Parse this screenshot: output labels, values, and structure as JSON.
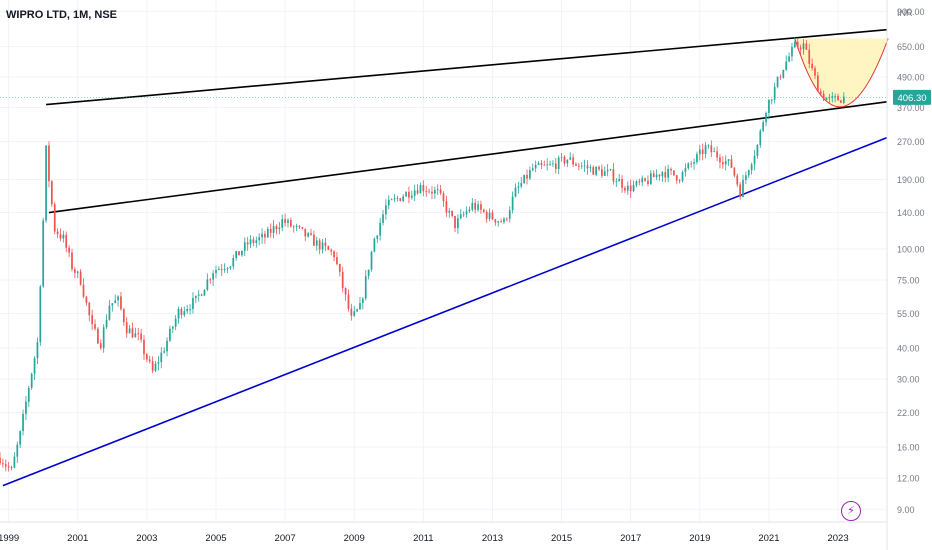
{
  "header": {
    "title": "WIPRO LTD, 1M, NSE"
  },
  "chart_data": {
    "type": "candlestick",
    "symbol": "WIPRO LTD",
    "interval": "1M",
    "exchange": "NSE",
    "currency": "INR",
    "y_scale": "log",
    "ylim": [
      8,
      1000
    ],
    "last_price": "406.30",
    "y_tick_labels": [
      "900.00",
      "650.00",
      "490.00",
      "370.00",
      "270.00",
      "190.00",
      "140.00",
      "100.00",
      "75.00",
      "55.00",
      "40.00",
      "30.00",
      "22.00",
      "16.00",
      "12.00",
      "9.00"
    ],
    "x_tick_labels": [
      "1999",
      "2001",
      "2003",
      "2005",
      "2007",
      "2009",
      "2011",
      "2013",
      "2015",
      "2017",
      "2019",
      "2021",
      "2023"
    ],
    "x_range": [
      "1998-10",
      "2024-06"
    ],
    "grid": true,
    "price_path": [
      [
        "1998-10",
        14.5
      ],
      [
        "1999-02",
        12.8
      ],
      [
        "1999-05",
        18
      ],
      [
        "1999-08",
        28
      ],
      [
        "1999-11",
        42
      ],
      [
        "2000-01",
        130
      ],
      [
        "2000-02",
        250
      ],
      [
        "2000-03",
        190
      ],
      [
        "2000-05",
        120
      ],
      [
        "2000-08",
        110
      ],
      [
        "2000-11",
        85
      ],
      [
        "2001-02",
        75
      ],
      [
        "2001-06",
        48
      ],
      [
        "2001-09",
        42
      ],
      [
        "2001-12",
        60
      ],
      [
        "2002-03",
        62
      ],
      [
        "2002-06",
        48
      ],
      [
        "2002-10",
        44
      ],
      [
        "2003-03",
        32
      ],
      [
        "2003-07",
        40
      ],
      [
        "2003-12",
        56
      ],
      [
        "2004-06",
        62
      ],
      [
        "2004-12",
        82
      ],
      [
        "2005-06",
        88
      ],
      [
        "2005-12",
        105
      ],
      [
        "2006-06",
        112
      ],
      [
        "2006-12",
        130
      ],
      [
        "2007-06",
        118
      ],
      [
        "2007-12",
        105
      ],
      [
        "2008-06",
        95
      ],
      [
        "2008-12",
        52
      ],
      [
        "2009-03",
        58
      ],
      [
        "2009-08",
        110
      ],
      [
        "2009-12",
        148
      ],
      [
        "2010-06",
        165
      ],
      [
        "2010-12",
        178
      ],
      [
        "2011-06",
        168
      ],
      [
        "2011-12",
        125
      ],
      [
        "2012-06",
        150
      ],
      [
        "2012-12",
        135
      ],
      [
        "2013-05",
        128
      ],
      [
        "2013-09",
        170
      ],
      [
        "2014-03",
        210
      ],
      [
        "2014-09",
        215
      ],
      [
        "2015-03",
        230
      ],
      [
        "2015-06",
        220
      ],
      [
        "2015-12",
        208
      ],
      [
        "2016-06",
        200
      ],
      [
        "2016-12",
        175
      ],
      [
        "2017-06",
        185
      ],
      [
        "2017-12",
        205
      ],
      [
        "2018-06",
        195
      ],
      [
        "2018-12",
        232
      ],
      [
        "2019-03",
        255
      ],
      [
        "2019-09",
        230
      ],
      [
        "2019-12",
        215
      ],
      [
        "2020-03",
        170
      ],
      [
        "2020-06",
        215
      ],
      [
        "2020-09",
        260
      ],
      [
        "2020-12",
        370
      ],
      [
        "2021-03",
        440
      ],
      [
        "2021-06",
        540
      ],
      [
        "2021-10",
        650
      ],
      [
        "2022-01",
        660
      ],
      [
        "2022-04",
        520
      ],
      [
        "2022-07",
        420
      ],
      [
        "2022-10",
        395
      ],
      [
        "2023-01",
        400
      ],
      [
        "2023-03",
        406.3
      ]
    ],
    "annotations": [
      {
        "type": "trendline",
        "color": "#000000",
        "from": [
          "2000-02",
          380
        ],
        "to": [
          "2024-06",
          760
        ]
      },
      {
        "type": "trendline",
        "color": "#000000",
        "from": [
          "2000-03",
          140
        ],
        "to": [
          "2024-06",
          390
        ]
      },
      {
        "type": "trendline",
        "color": "#0000cc",
        "from": [
          "1998-11",
          11.2
        ],
        "to": [
          "2024-06",
          280
        ]
      },
      {
        "type": "arc",
        "color": "#e53935",
        "fill": "#fff2b3",
        "label": ""
      }
    ],
    "colors": {
      "up": "#26a69a",
      "down": "#ef5350",
      "last_price_bg": "#26a69a",
      "badge": "#9c27b0"
    }
  }
}
